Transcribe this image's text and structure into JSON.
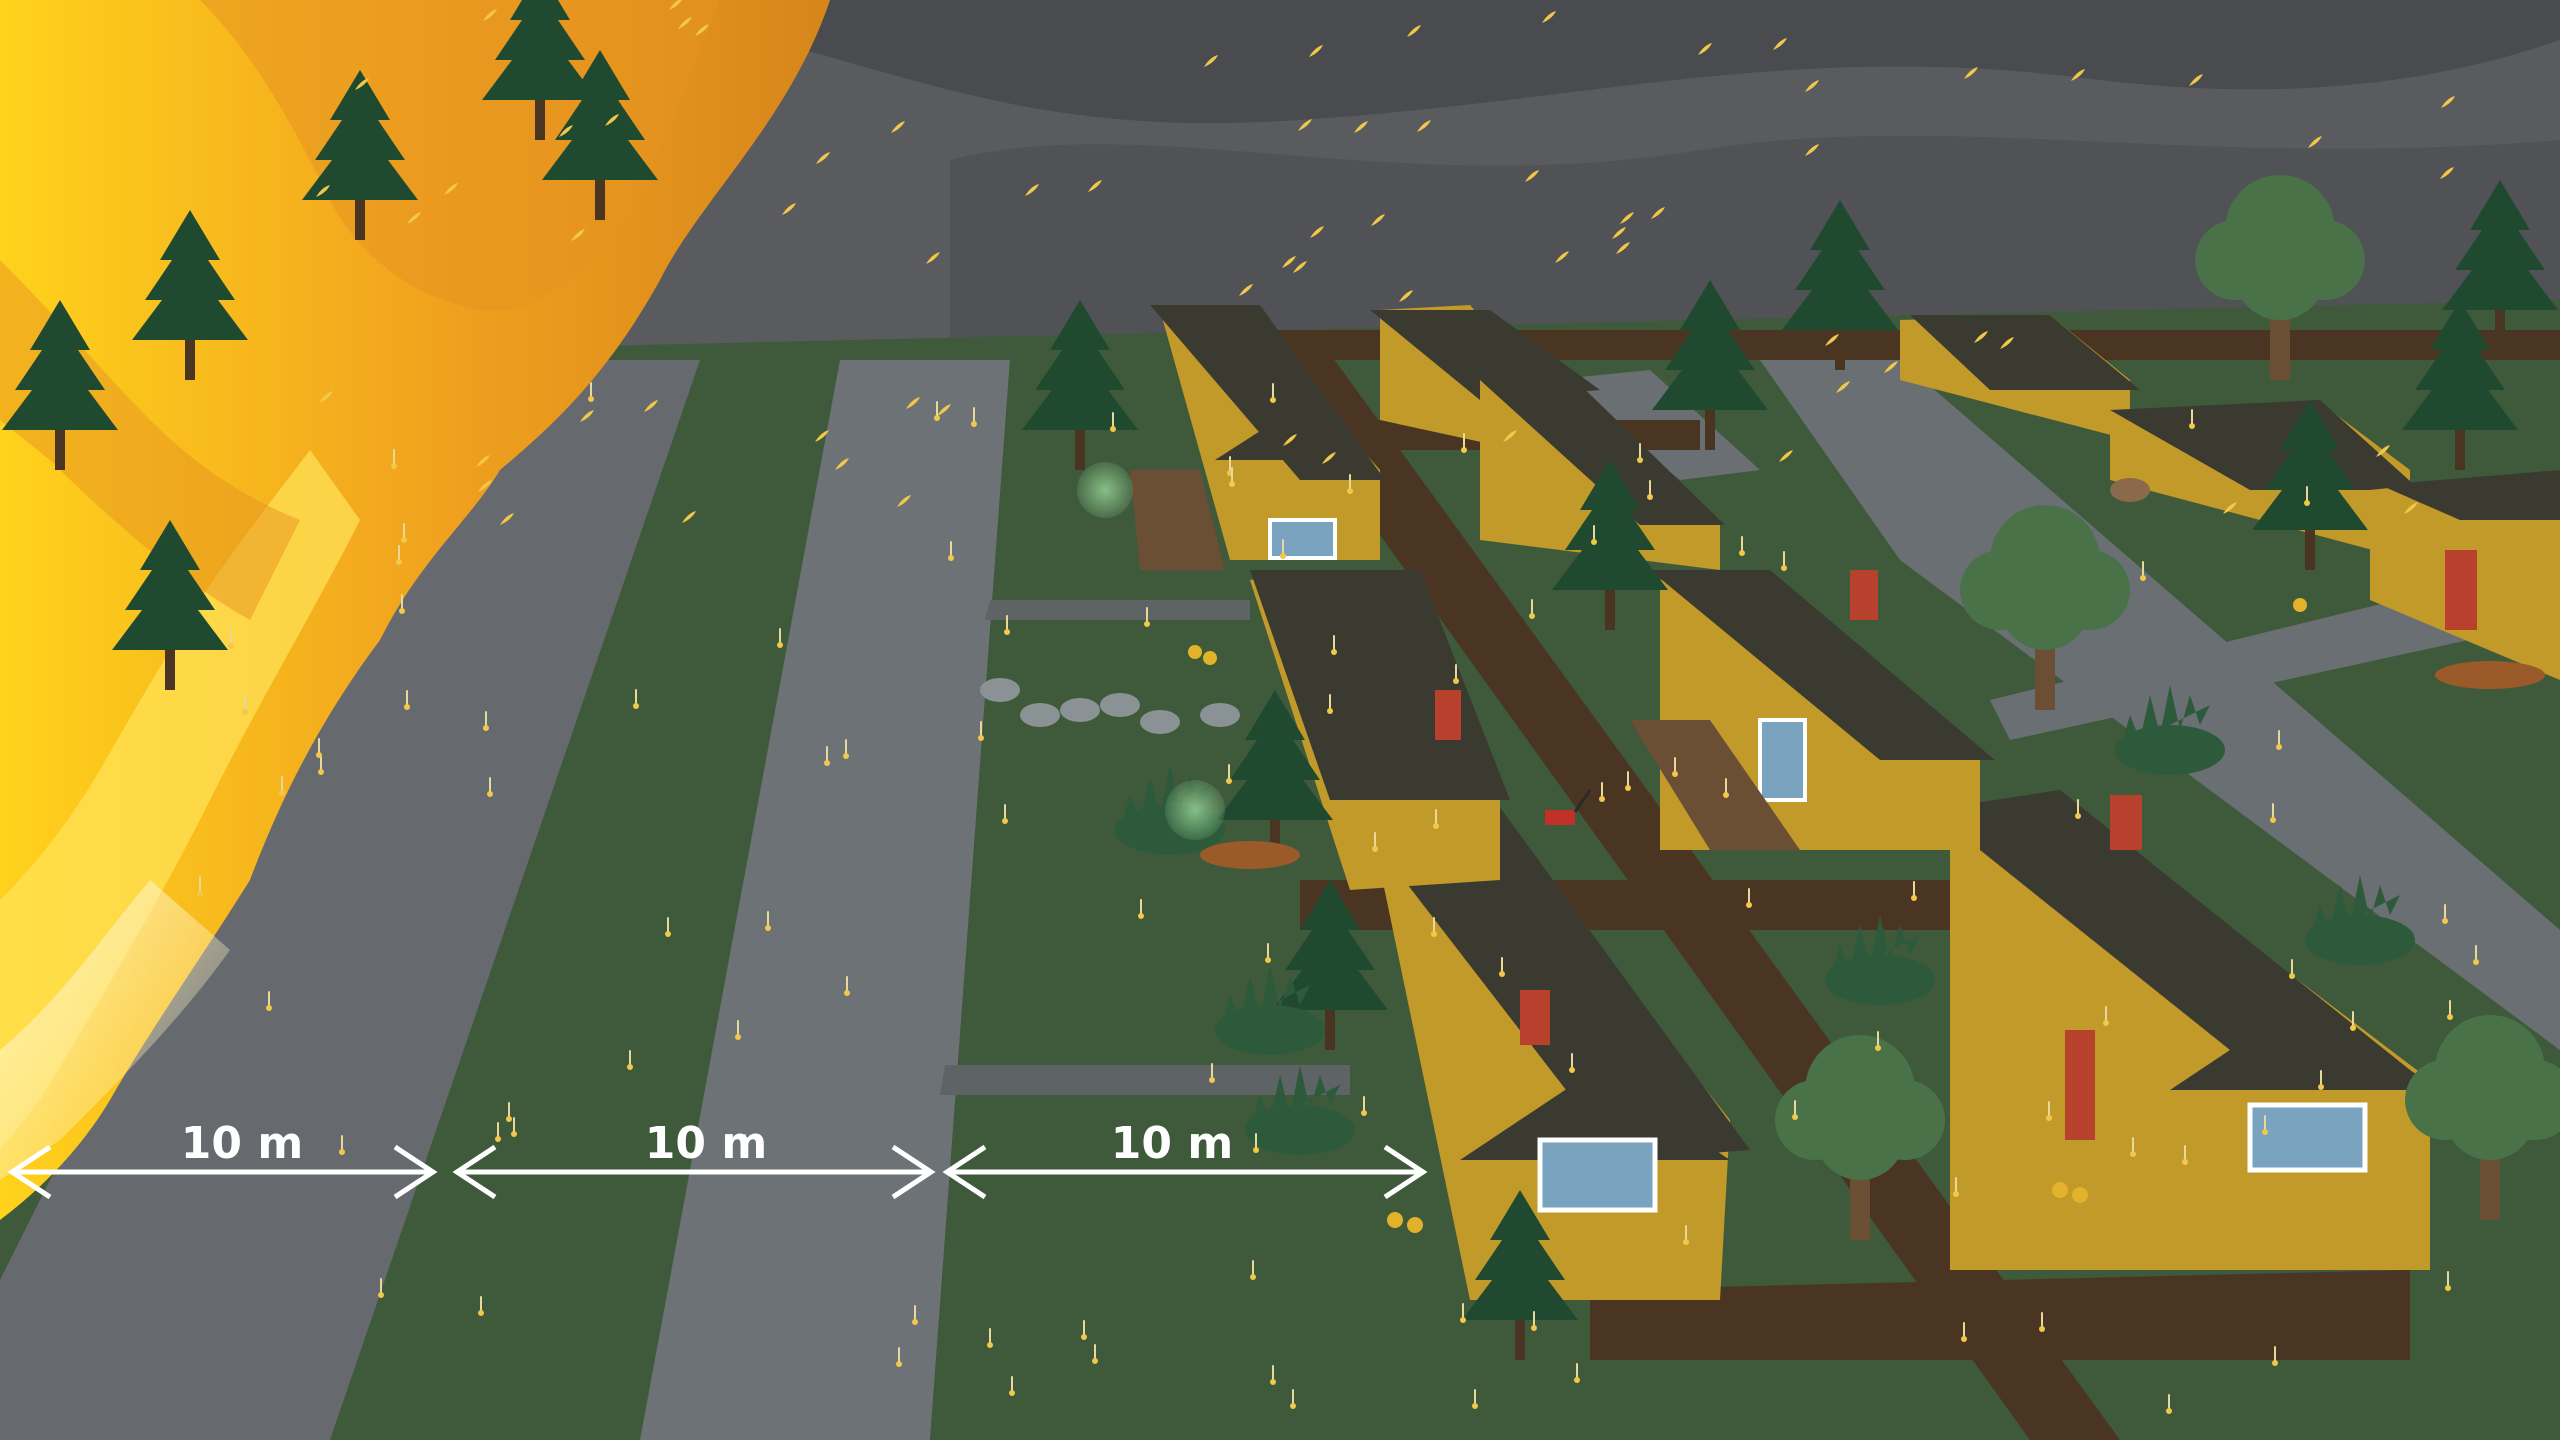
{
  "diagram": {
    "distance_labels": [
      "10 m",
      "10 m",
      "10 m"
    ],
    "zones": 3
  },
  "colors": {
    "sky_smoke": "#4a4b4f",
    "fire_yellow": "#f9c623",
    "fire_orange": "#ec8d1c",
    "grass": "#3e5a3b",
    "road": "#6d7276",
    "house_wall": "#c29a2a",
    "roof": "#3a3a30",
    "fence": "#4a3523",
    "pine": "#1f4a30",
    "deciduous": "#4a7248",
    "ember": "#f2c84a",
    "door": "#b8412e",
    "window": "#7aa3bf"
  },
  "icons": [
    "fire",
    "pine-tree",
    "deciduous-tree",
    "house",
    "fence",
    "ember",
    "shrub",
    "firewood-pile",
    "lawn-mower",
    "flowers",
    "stepping-stone",
    "double-arrow"
  ]
}
